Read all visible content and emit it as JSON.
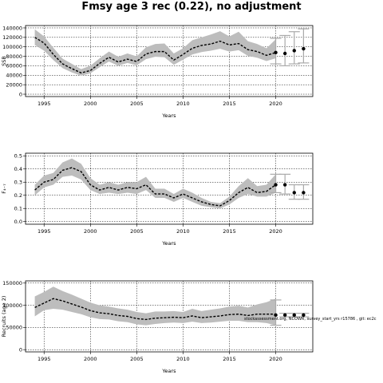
{
  "figure": {
    "title": "Fmsy age 3 rec (0.22), no adjustment",
    "annotation": "stockassessment.org, NCOWR, survey_start_yrs r15786 , git: ec2c"
  },
  "chart_data": [
    {
      "type": "line",
      "xlabel": "Years",
      "ylabel": "SSB",
      "xlim": [
        1993,
        2024
      ],
      "ylim": [
        -5000,
        145000
      ],
      "xticks": [
        1995,
        2000,
        2005,
        2010,
        2015,
        2020
      ],
      "yticks": [
        0,
        20000,
        40000,
        60000,
        80000,
        100000,
        120000,
        140000
      ],
      "grid": "dotted at every tick",
      "series": [
        {
          "kind": "estimate-with-ci",
          "x": [
            1994,
            1995,
            1996,
            1997,
            1998,
            1999,
            2000,
            2001,
            2002,
            2003,
            2004,
            2005,
            2006,
            2007,
            2008,
            2009,
            2010,
            2011,
            2012,
            2013,
            2014,
            2015,
            2016,
            2017,
            2018,
            2019,
            2020
          ],
          "values": [
            120000,
            108000,
            84000,
            64000,
            54000,
            45000,
            50000,
            65000,
            78000,
            68000,
            74000,
            69000,
            85000,
            90000,
            90000,
            72000,
            84000,
            97000,
            103000,
            106000,
            112000,
            104000,
            107000,
            94000,
            90000,
            82000,
            88000
          ],
          "lower": [
            104000,
            92000,
            72000,
            55000,
            46000,
            39000,
            44000,
            57000,
            69000,
            60000,
            66000,
            61000,
            74000,
            79000,
            78000,
            62000,
            73000,
            84000,
            89000,
            92000,
            96000,
            90000,
            93000,
            81000,
            77000,
            70000,
            76000
          ],
          "upper": [
            137000,
            122000,
            98000,
            75000,
            64000,
            53000,
            60000,
            76000,
            90000,
            79000,
            86000,
            80000,
            99000,
            106000,
            107000,
            86000,
            97000,
            114000,
            120000,
            126000,
            133000,
            122000,
            132000,
            112000,
            106000,
            97000,
            116000
          ]
        },
        {
          "kind": "forecast-median-with-interval",
          "x": [
            2020,
            2021,
            2022,
            2023
          ],
          "values": [
            88000,
            86000,
            92000,
            96000
          ],
          "lower": [
            64000,
            60000,
            64000,
            66000
          ],
          "upper": [
            118000,
            124000,
            132000,
            138000
          ]
        }
      ]
    },
    {
      "type": "line",
      "xlabel": "Years",
      "ylabel": "F₄₋₇",
      "xlim": [
        1993,
        2024
      ],
      "ylim": [
        -0.02,
        0.52
      ],
      "xticks": [
        1995,
        2000,
        2005,
        2010,
        2015,
        2020
      ],
      "yticks": [
        0.0,
        0.1,
        0.2,
        0.3,
        0.4,
        0.5
      ],
      "ytick_labels": [
        "0.0",
        "0.1",
        "0.2",
        "0.3",
        "0.4",
        "0.5"
      ],
      "grid": "dotted at every tick",
      "series": [
        {
          "kind": "estimate-with-ci",
          "x": [
            1994,
            1995,
            1996,
            1997,
            1998,
            1999,
            2000,
            2001,
            2002,
            2003,
            2004,
            2005,
            2006,
            2007,
            2008,
            2009,
            2010,
            2011,
            2012,
            2013,
            2014,
            2015,
            2016,
            2017,
            2018,
            2019,
            2020
          ],
          "values": [
            0.24,
            0.3,
            0.32,
            0.39,
            0.41,
            0.38,
            0.28,
            0.24,
            0.26,
            0.24,
            0.26,
            0.25,
            0.28,
            0.21,
            0.21,
            0.18,
            0.21,
            0.18,
            0.15,
            0.13,
            0.12,
            0.16,
            0.22,
            0.26,
            0.22,
            0.23,
            0.28
          ],
          "lower": [
            0.2,
            0.26,
            0.28,
            0.34,
            0.35,
            0.32,
            0.24,
            0.21,
            0.22,
            0.21,
            0.22,
            0.21,
            0.24,
            0.18,
            0.18,
            0.15,
            0.18,
            0.15,
            0.12,
            0.11,
            0.1,
            0.13,
            0.18,
            0.21,
            0.19,
            0.19,
            0.22
          ],
          "upper": [
            0.28,
            0.35,
            0.37,
            0.45,
            0.48,
            0.44,
            0.33,
            0.28,
            0.3,
            0.28,
            0.3,
            0.3,
            0.34,
            0.25,
            0.25,
            0.21,
            0.25,
            0.22,
            0.18,
            0.15,
            0.14,
            0.19,
            0.27,
            0.33,
            0.27,
            0.28,
            0.36
          ]
        },
        {
          "kind": "forecast-median-with-interval",
          "x": [
            2020,
            2021,
            2022,
            2023
          ],
          "values": [
            0.28,
            0.28,
            0.22,
            0.22
          ],
          "lower": [
            0.22,
            0.21,
            0.17,
            0.17
          ],
          "upper": [
            0.36,
            0.36,
            0.28,
            0.28
          ]
        }
      ]
    },
    {
      "type": "line",
      "xlabel": "Years",
      "ylabel": "Recruits (age 2)",
      "xlim": [
        1993,
        2024
      ],
      "ylim": [
        -5000,
        155000
      ],
      "xticks": [
        1995,
        2000,
        2005,
        2010,
        2015,
        2020
      ],
      "yticks": [
        0,
        50000,
        100000,
        150000
      ],
      "grid": "dotted at every tick",
      "series": [
        {
          "kind": "estimate-with-ci",
          "x": [
            1994,
            1995,
            1996,
            1997,
            1998,
            1999,
            2000,
            2001,
            2002,
            2003,
            2004,
            2005,
            2006,
            2007,
            2008,
            2009,
            2010,
            2011,
            2012,
            2013,
            2014,
            2015,
            2016,
            2017,
            2018,
            2019,
            2020
          ],
          "values": [
            95000,
            105000,
            115000,
            110000,
            103000,
            96000,
            88000,
            83000,
            81000,
            77000,
            75000,
            70000,
            68000,
            71000,
            72000,
            73000,
            72000,
            76000,
            72000,
            74000,
            76000,
            79000,
            80000,
            77000,
            80000,
            80000,
            80000
          ],
          "lower": [
            75000,
            89000,
            92000,
            90000,
            85000,
            80000,
            73000,
            69000,
            68000,
            64000,
            62000,
            57000,
            55000,
            58000,
            60000,
            61000,
            60000,
            63000,
            60000,
            61000,
            63000,
            65000,
            65000,
            62000,
            62000,
            60000,
            55000
          ],
          "upper": [
            120000,
            130000,
            142000,
            132000,
            124000,
            115000,
            106000,
            100000,
            97000,
            93000,
            90000,
            85000,
            82000,
            86000,
            86000,
            87000,
            85000,
            92000,
            87000,
            90000,
            93000,
            97000,
            99000,
            95000,
            102000,
            107000,
            115000
          ]
        },
        {
          "kind": "forecast-median-with-interval",
          "x": [
            2020,
            2021,
            2022,
            2023
          ],
          "values": [
            78000,
            78000,
            78000,
            78000
          ],
          "lower": [
            55000,
            74000,
            74000,
            74000
          ],
          "upper": [
            112000,
            82000,
            82000,
            82000
          ]
        }
      ]
    }
  ]
}
